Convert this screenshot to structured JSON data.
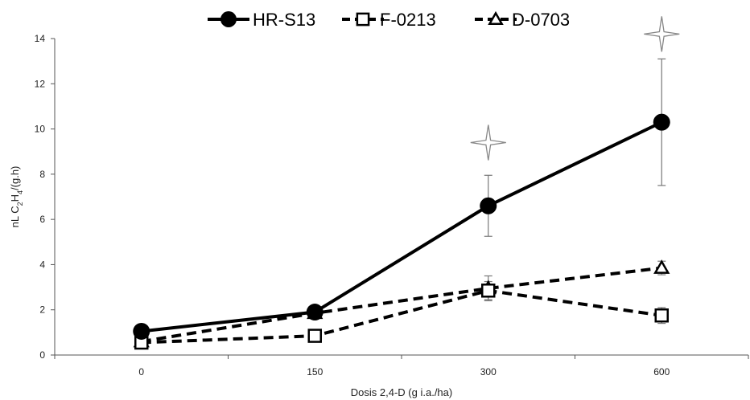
{
  "chart_data": {
    "type": "line",
    "categories": [
      "0",
      "150",
      "300",
      "600"
    ],
    "xlabel": "Dosis 2,4-D (g i.a./ha)",
    "ylabel": {
      "base": "nL C",
      "sub1": "2",
      "mid": "H",
      "sub2": "4",
      "end": "/(g.h)"
    },
    "ylim": [
      0,
      14
    ],
    "yticks": [
      0,
      2,
      4,
      6,
      8,
      10,
      12,
      14
    ],
    "grid": false,
    "legend_position": "top",
    "series": [
      {
        "name": "HR-S13",
        "marker": "circle",
        "line": "solid",
        "values": [
          1.05,
          1.9,
          6.6,
          10.3
        ],
        "errors": [
          0.1,
          0.3,
          1.35,
          2.8
        ]
      },
      {
        "name": "F-0213",
        "marker": "square",
        "line": "dashed",
        "values": [
          0.55,
          0.85,
          2.85,
          1.75
        ],
        "errors": [
          0.1,
          0.1,
          0.4,
          0.35
        ]
      },
      {
        "name": "D-0703",
        "marker": "triangle",
        "line": "dashed",
        "values": [
          0.6,
          1.85,
          2.95,
          3.85
        ],
        "errors": [
          0.1,
          0.15,
          0.55,
          0.3
        ]
      }
    ],
    "annotations": [
      {
        "type": "star",
        "category_index": 2,
        "y": 9.4
      },
      {
        "type": "star",
        "category_index": 3,
        "y": 14.2
      }
    ],
    "colors": {
      "series": "#000000",
      "error_bars": "#777777",
      "star": "#888888",
      "axis": "#555555"
    }
  }
}
